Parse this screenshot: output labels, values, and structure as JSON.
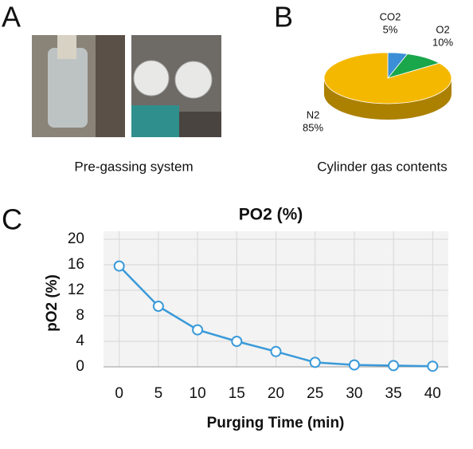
{
  "panels": [
    {
      "label": "A",
      "caption": "Pre-gassing system"
    },
    {
      "label": "B",
      "caption": "Cylinder gas contents"
    },
    {
      "label": "C"
    }
  ],
  "chart_data": [
    {
      "type": "pie",
      "categories": [
        "CO2",
        "O2",
        "N2"
      ],
      "values": [
        5,
        10,
        85
      ],
      "value_labels": [
        "5%",
        "10%",
        "85%"
      ],
      "colors": [
        "#3a8fd6",
        "#1aa64a",
        "#f5b800"
      ]
    },
    {
      "type": "line",
      "title": "PO2 (%)",
      "x_label": "Purging Time (min)",
      "y_label": "pO2 (%)",
      "x": [
        0,
        5,
        10,
        15,
        20,
        25,
        30,
        35,
        40
      ],
      "values": [
        15.8,
        9.5,
        5.8,
        4.0,
        2.4,
        0.7,
        0.3,
        0.2,
        0.1
      ],
      "color": "#3a9ad9",
      "xlim": [
        -2,
        42
      ],
      "xticks": [
        0,
        5,
        10,
        15,
        20,
        25,
        30,
        35,
        40
      ],
      "ylim": [
        0,
        20
      ],
      "yticks": [
        0,
        4,
        8,
        12,
        16,
        20
      ],
      "grid": true
    }
  ]
}
